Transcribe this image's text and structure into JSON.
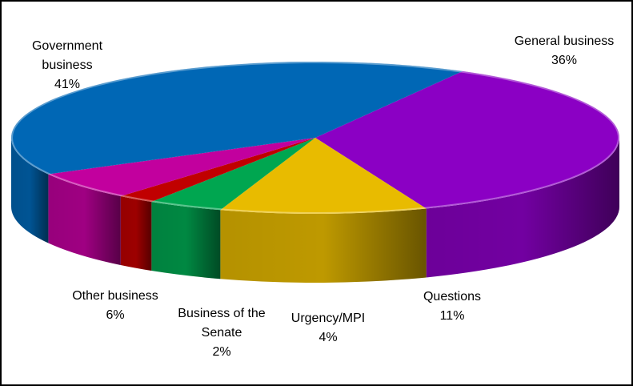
{
  "chart_data": {
    "type": "pie",
    "three_d": true,
    "categories": [
      "General business",
      "Questions",
      "Urgency/MPI",
      "Business of the Senate",
      "Other business",
      "Government business"
    ],
    "values": [
      36,
      11,
      4,
      2,
      6,
      41
    ],
    "unit": "%",
    "colors": [
      "#8B00C4",
      "#E8BB00",
      "#00A650",
      "#C00000",
      "#C2009E",
      "#0067B5"
    ],
    "labels": {
      "general": {
        "name": "General business",
        "pct": "36%"
      },
      "questions": {
        "name": "Questions",
        "pct": "11%"
      },
      "urgency": {
        "name": "Urgency/MPI",
        "pct": "4%"
      },
      "senate": {
        "name_line1": "Business of the",
        "name_line2": "Senate",
        "pct": "2%"
      },
      "other": {
        "name": "Other business",
        "pct": "6%"
      },
      "government": {
        "name_line1": "Government",
        "name_line2": "business",
        "pct": "41%"
      }
    },
    "legend": "none",
    "start_angle_deg": 61
  }
}
